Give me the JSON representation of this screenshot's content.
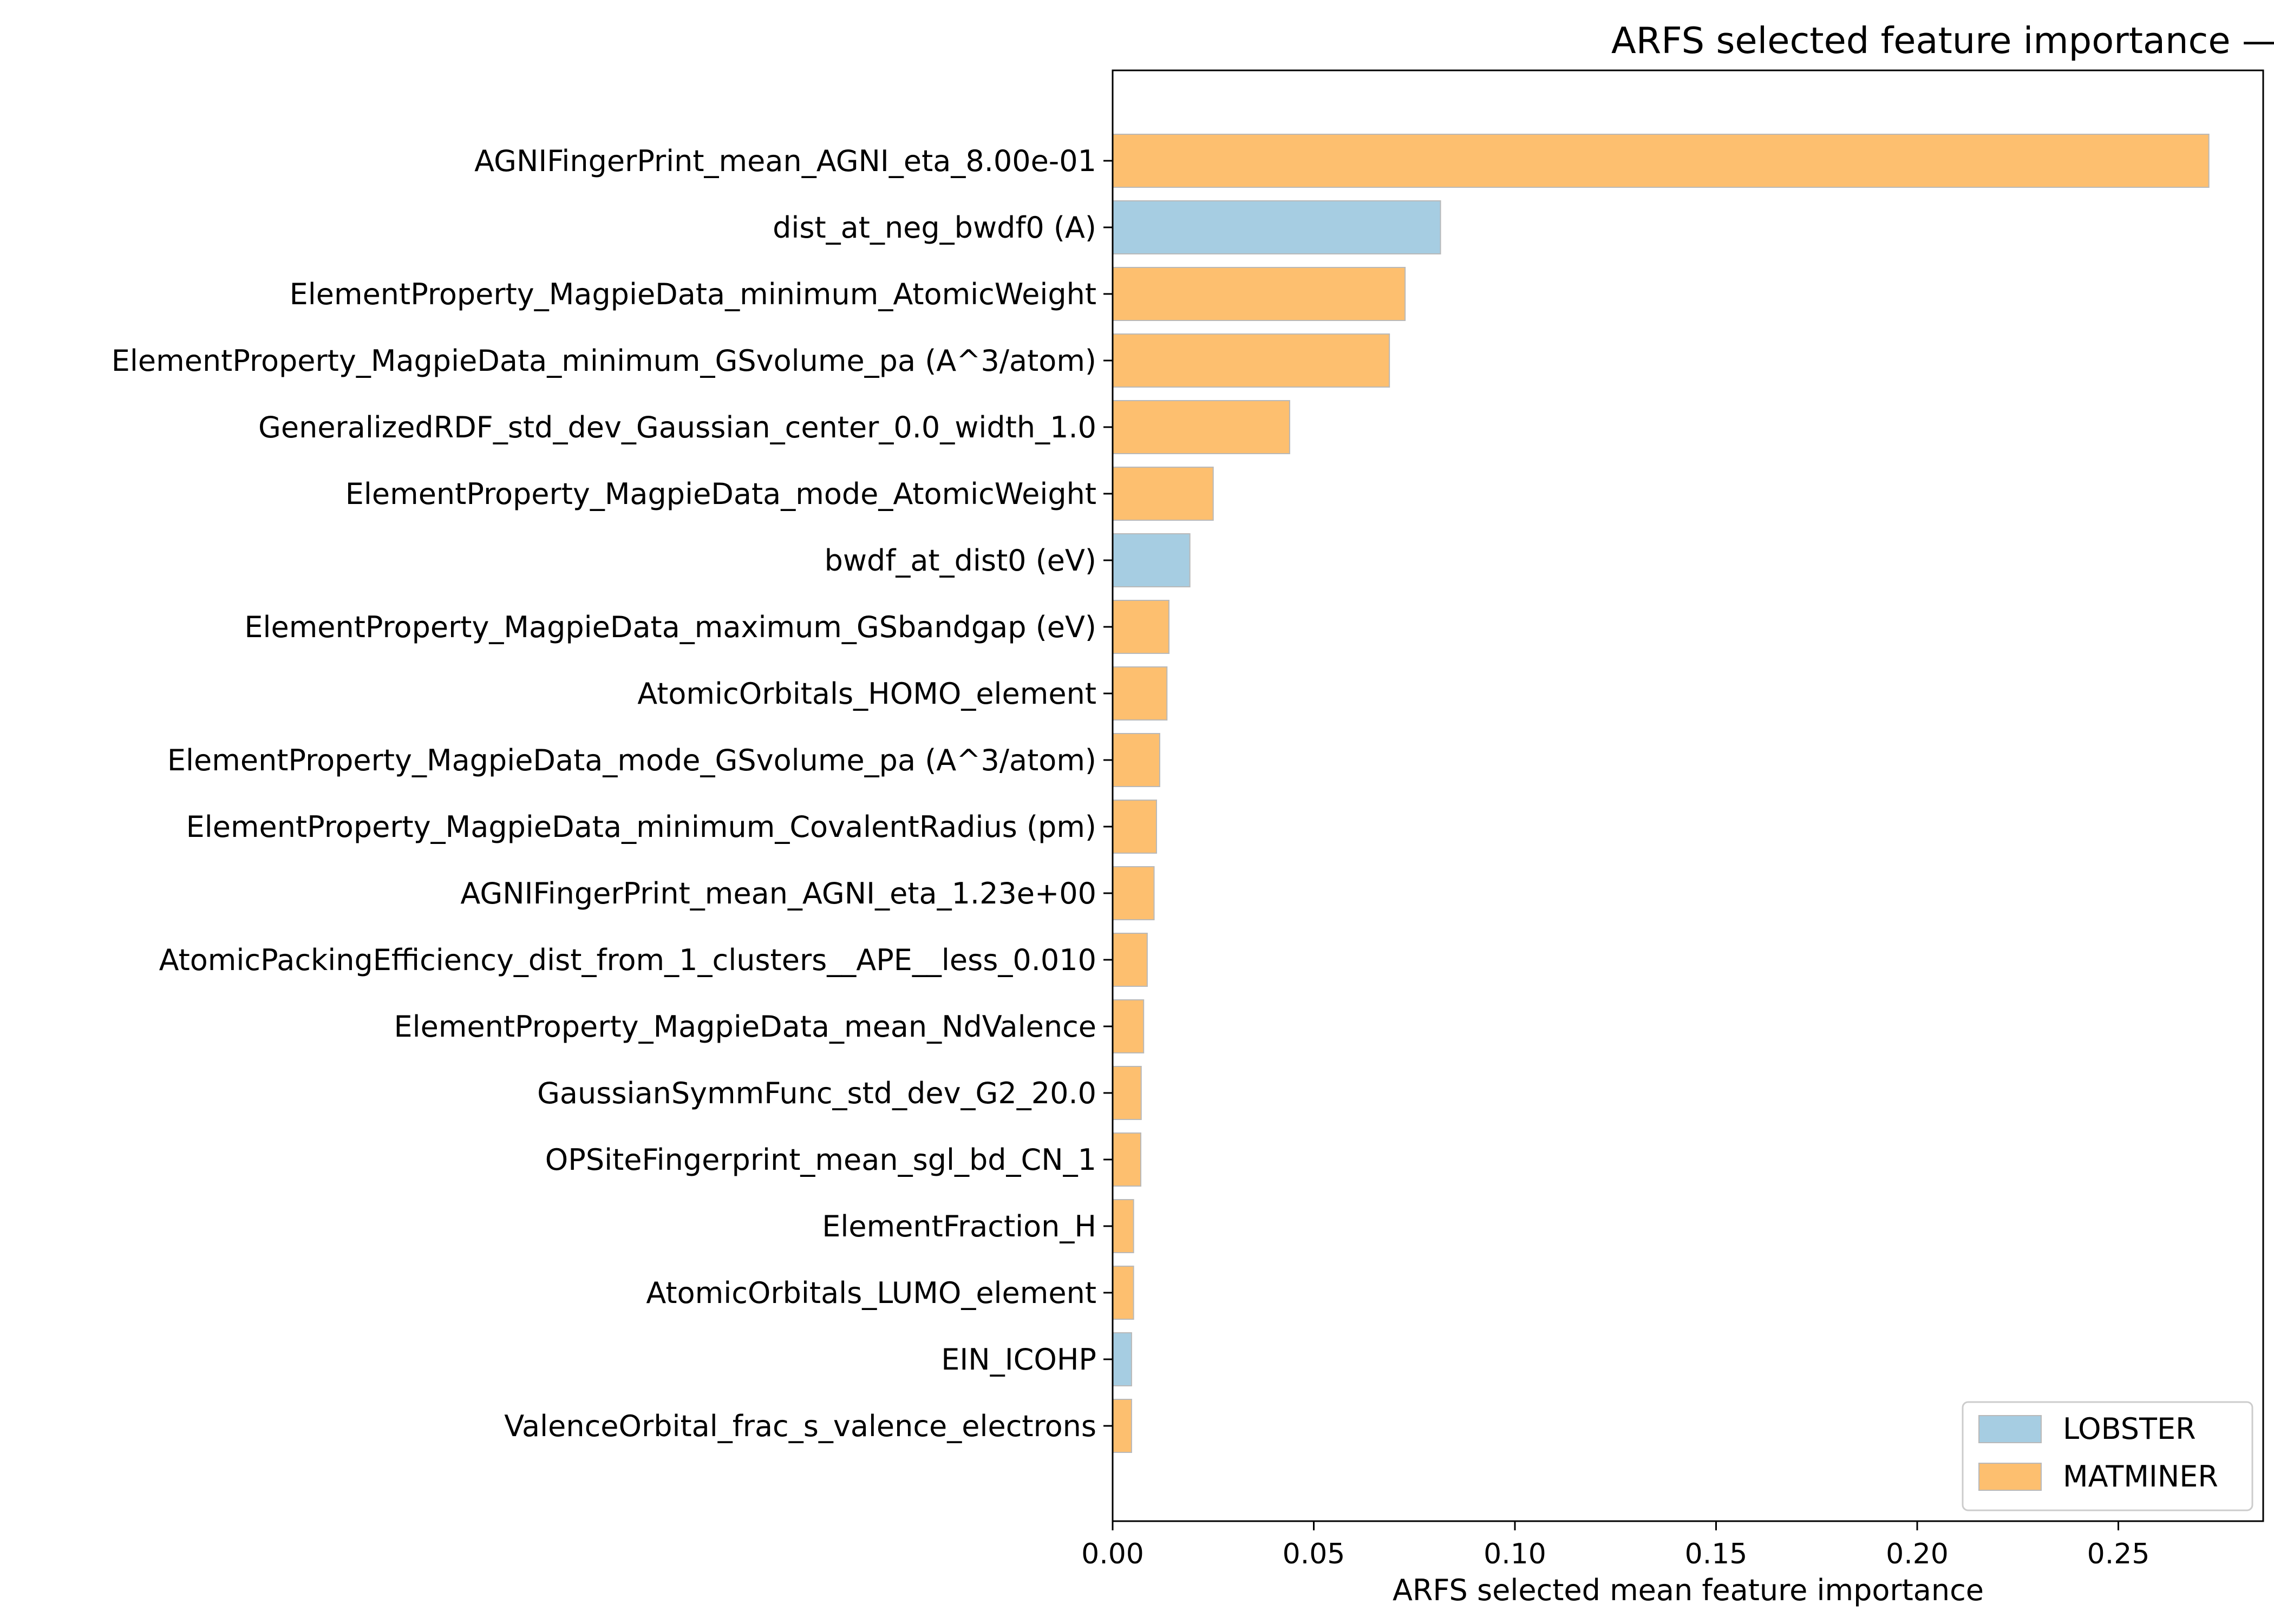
{
  "chart_data": {
    "type": "bar",
    "orientation": "horizontal",
    "title": "ARFS selected feature importance — last_phdos_peak",
    "xlabel": "ARFS selected mean feature importance",
    "ylabel": "",
    "xlim": [
      0,
      0.286
    ],
    "xticks": [
      0.0,
      0.05,
      0.1,
      0.15,
      0.2,
      0.25
    ],
    "xtick_labels": [
      "0.00",
      "0.05",
      "0.10",
      "0.15",
      "0.20",
      "0.25"
    ],
    "grid": false,
    "legend_position": "lower-right",
    "legend": [
      {
        "name": "LOBSTER",
        "color": "#a6cde2"
      },
      {
        "name": "MATMINER",
        "color": "#fdbf6f"
      }
    ],
    "bar_edge_color": "#b9b9b9",
    "categories": [
      "AGNIFingerPrint_mean_AGNI_eta_8.00e-01",
      "dist_at_neg_bwdf0 (A)",
      "ElementProperty_MagpieData_minimum_AtomicWeight",
      "ElementProperty_MagpieData_minimum_GSvolume_pa (A^3/atom)",
      "GeneralizedRDF_std_dev_Gaussian_center_0.0_width_1.0",
      "ElementProperty_MagpieData_mode_AtomicWeight",
      "bwdf_at_dist0 (eV)",
      "ElementProperty_MagpieData_maximum_GSbandgap (eV)",
      "AtomicOrbitals_HOMO_element",
      "ElementProperty_MagpieData_mode_GSvolume_pa (A^3/atom)",
      "ElementProperty_MagpieData_minimum_CovalentRadius (pm)",
      "AGNIFingerPrint_mean_AGNI_eta_1.23e+00",
      "AtomicPackingEfficiency_dist_from_1_clusters__APE__less_0.010",
      "ElementProperty_MagpieData_mean_NdValence",
      "GaussianSymmFunc_std_dev_G2_20.0",
      "OPSiteFingerprint_mean_sgl_bd_CN_1",
      "ElementFraction_H",
      "AtomicOrbitals_LUMO_element",
      "EIN_ICOHP",
      "ValenceOrbital_frac_s_valence_electrons"
    ],
    "values": [
      0.2725,
      0.0815,
      0.0727,
      0.0688,
      0.044,
      0.025,
      0.0192,
      0.014,
      0.0135,
      0.0117,
      0.0109,
      0.0103,
      0.0086,
      0.0077,
      0.0071,
      0.007,
      0.0052,
      0.0052,
      0.0047,
      0.0047
    ],
    "groups": [
      "MATMINER",
      "LOBSTER",
      "MATMINER",
      "MATMINER",
      "MATMINER",
      "MATMINER",
      "LOBSTER",
      "MATMINER",
      "MATMINER",
      "MATMINER",
      "MATMINER",
      "MATMINER",
      "MATMINER",
      "MATMINER",
      "MATMINER",
      "MATMINER",
      "MATMINER",
      "MATMINER",
      "LOBSTER",
      "MATMINER"
    ]
  }
}
